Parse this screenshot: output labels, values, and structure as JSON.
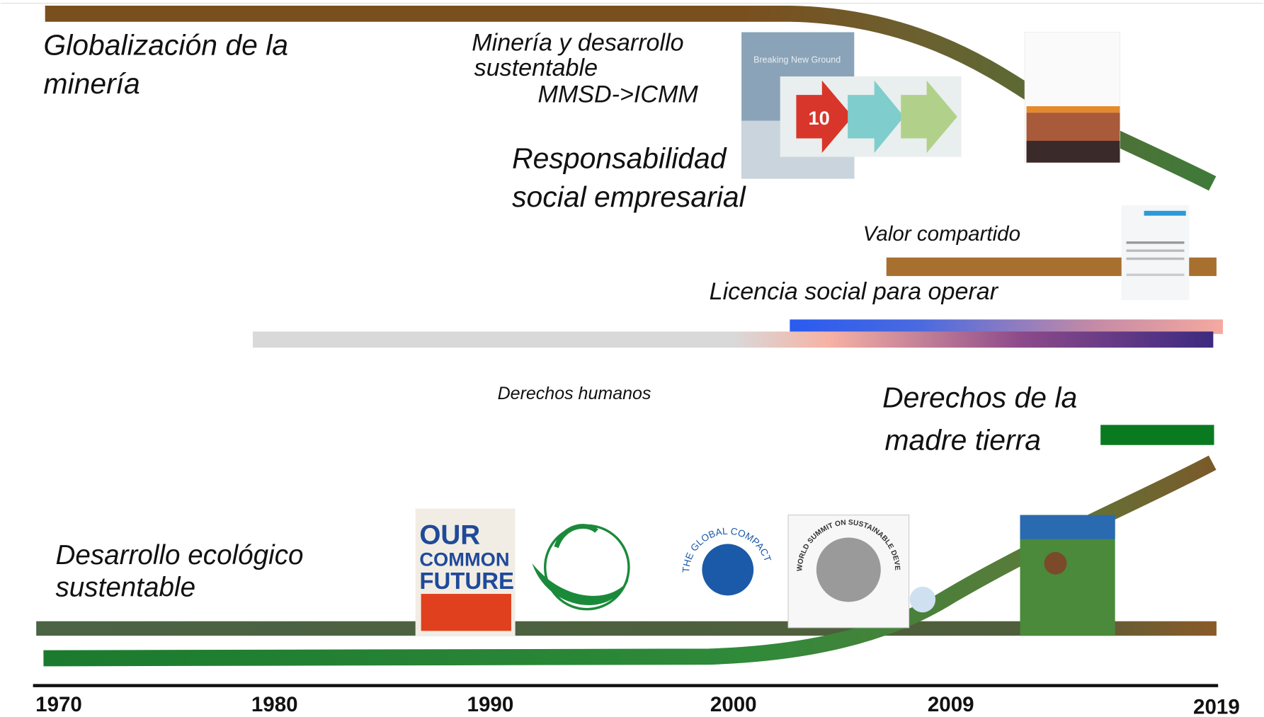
{
  "labels": {
    "globalizacion": [
      "Globalización de la",
      "minería"
    ],
    "mineria": [
      "Minería y desarrollo",
      "sustentable"
    ],
    "mmsd": "MMSD->ICMM",
    "rse": [
      "Responsabilidad",
      "social empresarial"
    ],
    "valor": "Valor compartido",
    "licencia": "Licencia social para operar",
    "derechos_humanos": "Derechos humanos",
    "madre_tierra": [
      "Derechos de la",
      "madre tierra"
    ],
    "desarrollo": [
      "Desarrollo ecológico",
      "sustentable"
    ]
  },
  "logos": {
    "breaking": "Breaking New Ground",
    "principles": "10",
    "our_common_future": [
      "OUR",
      "COMMON",
      "FUTURE"
    ],
    "global_compact": "THE GLOBAL COMPACT",
    "summit": "WORLD SUMMIT ON SUSTAINABLE DEVELOPMENT"
  },
  "timeline": {
    "years": [
      1970,
      1980,
      1990,
      2000,
      2009,
      2019
    ]
  }
}
